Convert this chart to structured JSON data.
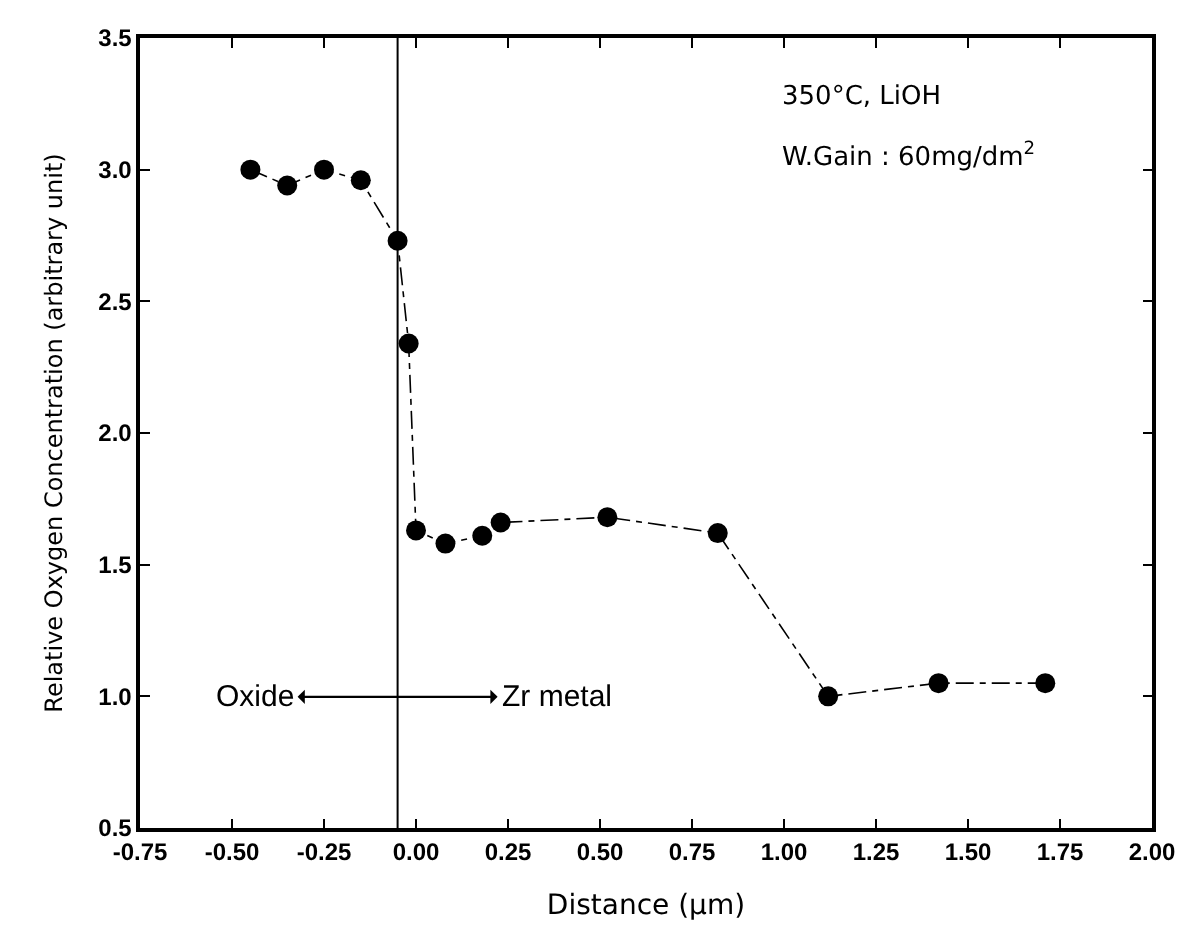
{
  "chart_data": {
    "type": "line",
    "xlabel": "Distance (μm)",
    "ylabel": "Relative Oxygen Concentration (arbitrary unit)",
    "x": [
      -0.45,
      -0.35,
      -0.25,
      -0.15,
      -0.05,
      -0.02,
      0.0,
      0.08,
      0.18,
      0.23,
      0.52,
      0.82,
      1.12,
      1.42,
      1.71
    ],
    "series": [
      {
        "color": "#000000",
        "values": [
          3.0,
          2.94,
          3.0,
          2.96,
          2.73,
          2.34,
          1.63,
          1.58,
          1.61,
          1.66,
          1.68,
          1.62,
          1.0,
          1.05,
          1.05
        ]
      }
    ],
    "marker": "circle",
    "line_style": "dashed",
    "xlim": [
      -0.75,
      2.0
    ],
    "xticks": [
      {
        "value": -0.75,
        "label": "-0.75"
      },
      {
        "value": -0.5,
        "label": "-0.50"
      },
      {
        "value": -0.25,
        "label": "-0.25"
      },
      {
        "value": 0,
        "label": "0.00"
      },
      {
        "value": 0.25,
        "label": "0.25"
      },
      {
        "value": 0.5,
        "label": "0.50"
      },
      {
        "value": 0.75,
        "label": "0.75"
      },
      {
        "value": 1,
        "label": "1.00"
      },
      {
        "value": 1.25,
        "label": "1.25"
      },
      {
        "value": 1.5,
        "label": "1.50"
      },
      {
        "value": 1.75,
        "label": "1.75"
      },
      {
        "value": 2,
        "label": "2.00"
      }
    ],
    "ylim": [
      0.5,
      3.5
    ],
    "yticks": [
      {
        "value": 0.5,
        "label": "0.5"
      },
      {
        "value": 1,
        "label": "1.0"
      },
      {
        "value": 1.5,
        "label": "1.5"
      },
      {
        "value": 2,
        "label": "2.0"
      },
      {
        "value": 2.5,
        "label": "2.5"
      },
      {
        "value": 3,
        "label": "3.0"
      },
      {
        "value": 3.5,
        "label": "3.5"
      }
    ],
    "ref_lines": [
      {
        "axis": "x",
        "value": -0.05,
        "color": "#000000"
      }
    ],
    "annotations": [
      "Oxide",
      "Zr metal",
      "350°C, LiOH",
      "W.Gain : 60mg/dm$^{2}$"
    ]
  }
}
